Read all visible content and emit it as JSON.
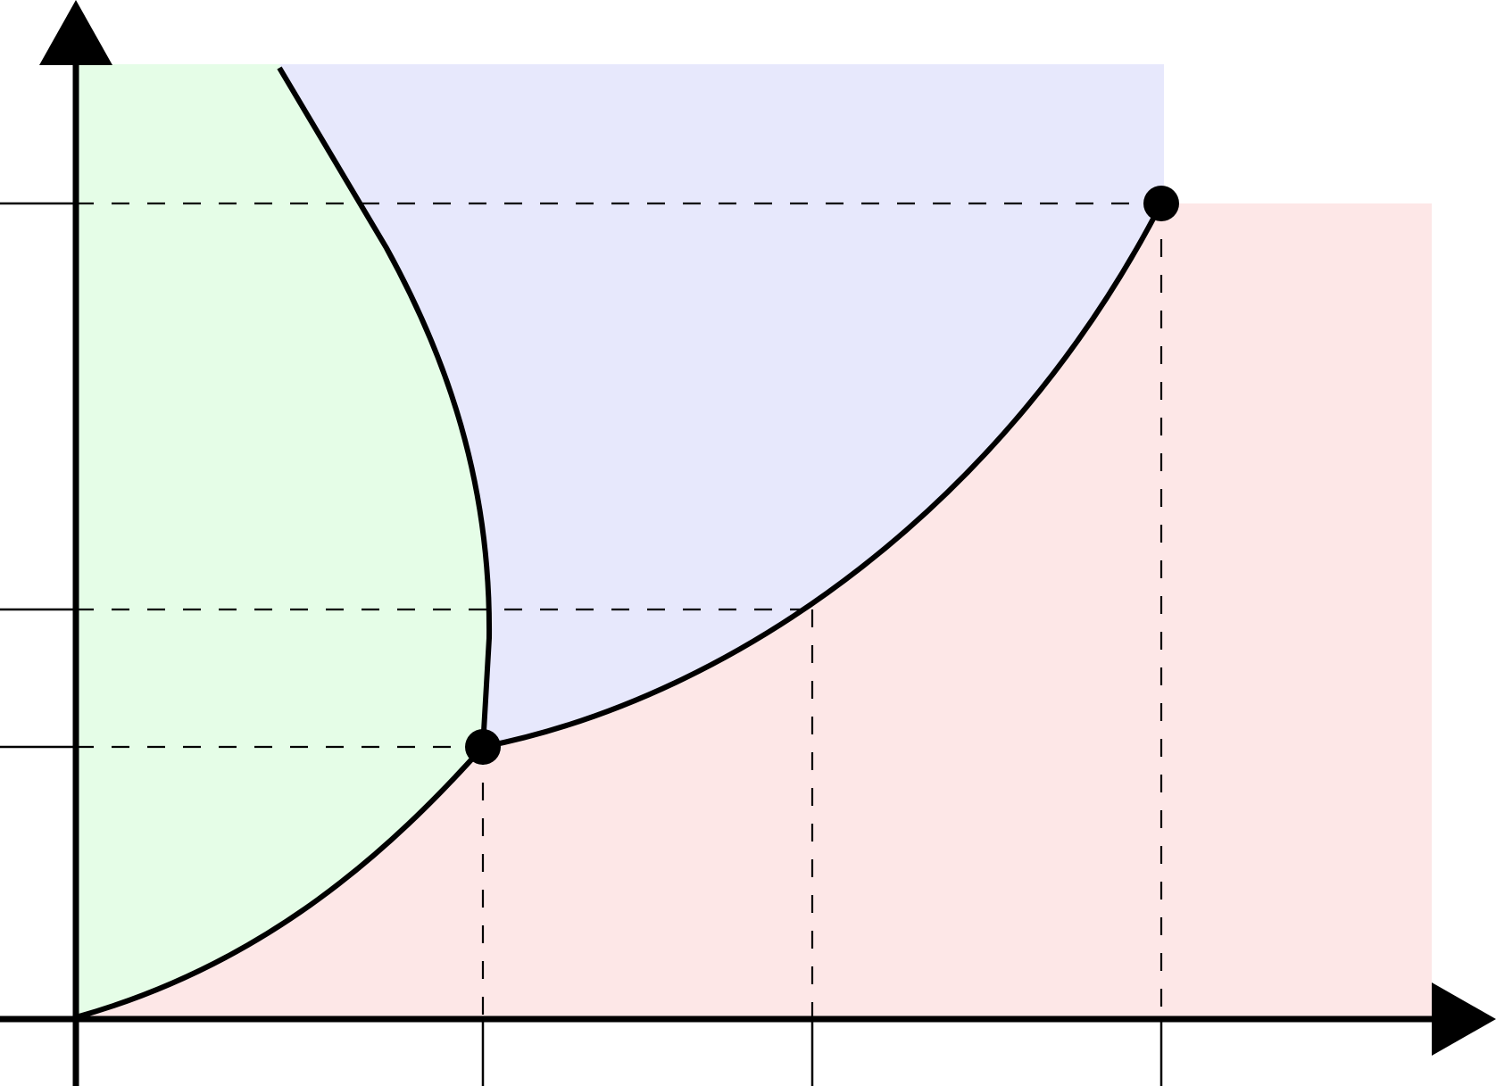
{
  "diagram": {
    "description_free": true,
    "regions": [
      {
        "id": "green-region",
        "color": "#e5fde7"
      },
      {
        "id": "blue-region",
        "color": "#e7e8fc"
      },
      {
        "id": "red-region",
        "color": "#fde7e7"
      }
    ],
    "line_color": "#000000",
    "point_color": "#000000",
    "points_marked": 2,
    "x_ticks": 3,
    "y_ticks": 3
  }
}
